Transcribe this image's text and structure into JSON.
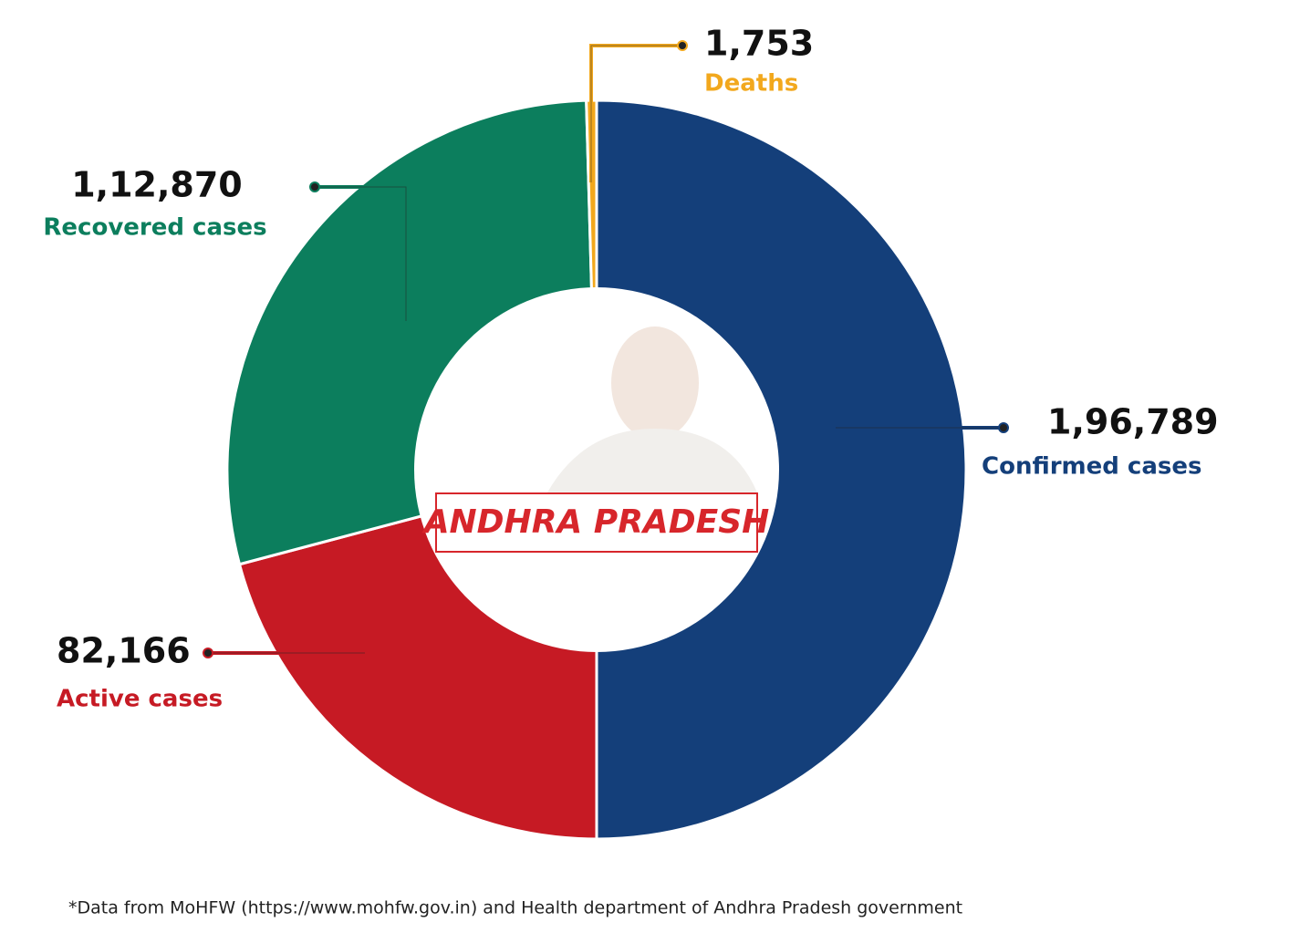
{
  "chart_data": {
    "type": "donut",
    "title": "ANDHRA PRADESH",
    "categories": [
      "Confirmed cases",
      "Active cases",
      "Recovered cases",
      "Deaths"
    ],
    "values": [
      196789,
      82166,
      112870,
      1753
    ],
    "value_labels": [
      "1,96,789",
      "82,166",
      "1,12,870",
      "1,753"
    ],
    "colors": [
      "#143f7a",
      "#c61a24",
      "#0c7e5d",
      "#f2a81d"
    ],
    "footnote": "*Data from MoHFW (https://www.mohfw.gov.in) and Health department of Andhra Pradesh government"
  }
}
